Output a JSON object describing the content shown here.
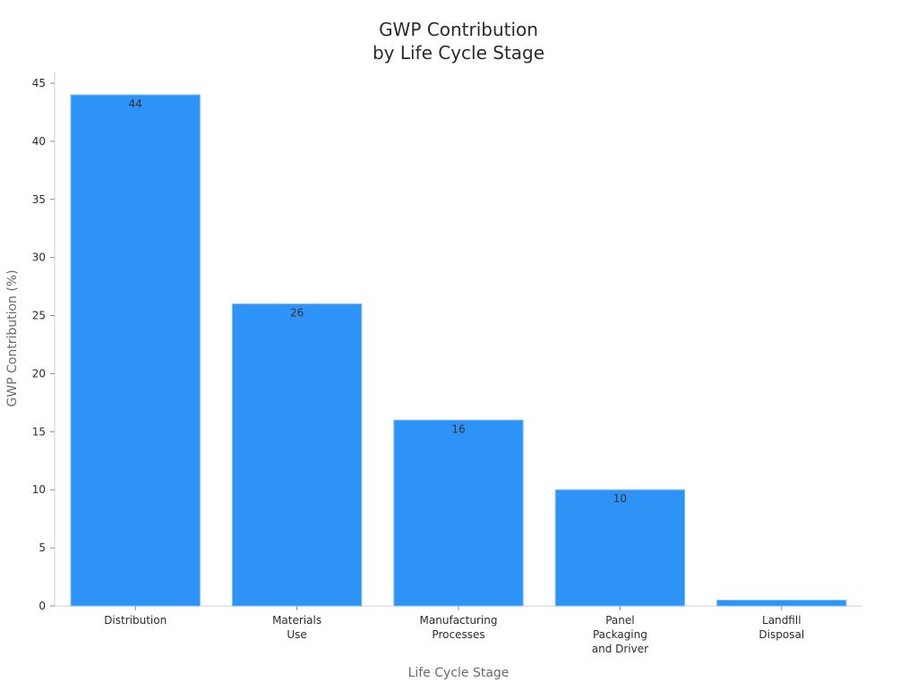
{
  "chart_data": {
    "type": "bar",
    "title": [
      "GWP Contribution",
      "by Life Cycle Stage"
    ],
    "xlabel": "Life Cycle Stage",
    "ylabel": "GWP Contribution (%)",
    "categories": [
      [
        "Distribution"
      ],
      [
        "Materials",
        "Use"
      ],
      [
        "Manufacturing",
        "Processes"
      ],
      [
        "Panel",
        "Packaging",
        "and Driver"
      ],
      [
        "Landfill",
        "Disposal"
      ]
    ],
    "values": [
      44,
      26,
      16,
      10,
      0.5
    ],
    "data_labels": [
      "44",
      "26",
      "16",
      "10",
      ""
    ],
    "ylim": [
      0,
      46
    ],
    "yticks": [
      0,
      5,
      10,
      15,
      20,
      25,
      30,
      35,
      40,
      45
    ],
    "grid": false,
    "legend": "none",
    "colors": {
      "bar": "#2e93f7",
      "bar_edge": "#82bcf8"
    }
  }
}
